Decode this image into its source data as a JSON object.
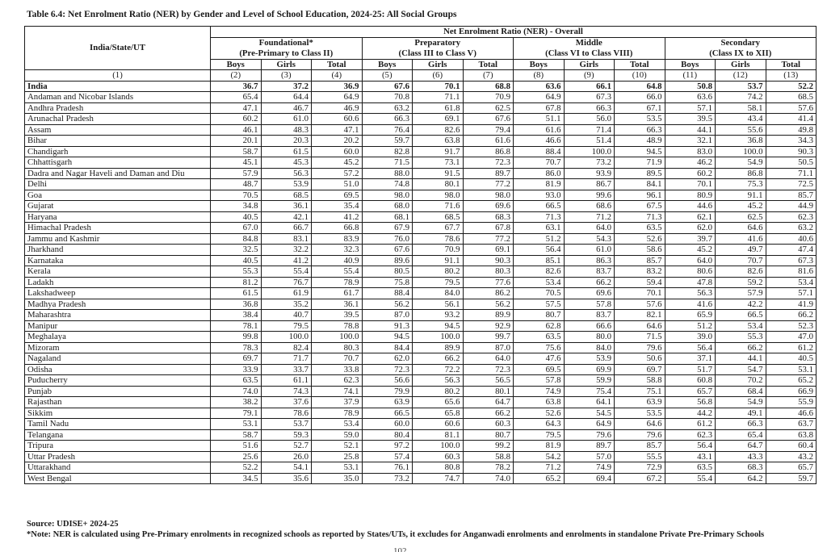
{
  "page": {
    "title": "Table 6.4: Net Enrolment Ratio (NER) by Gender and Level of School Education, 2024-25: All Social Groups",
    "page_number": "102"
  },
  "table": {
    "state_col_header": "India/State/UT",
    "overall_header": "Net Enrolment Ratio (NER) - Overall",
    "groups": [
      {
        "name": "Foundational*",
        "range": "(Pre-Primary to Class II)"
      },
      {
        "name": "Preparatory",
        "range": "(Class III to Class V)"
      },
      {
        "name": "Middle",
        "range": "(Class VI to Class VIII)"
      },
      {
        "name": "Secondary",
        "range": "(Class IX to XII)"
      }
    ],
    "sub_headers": [
      "Boys",
      "Girls",
      "Total"
    ],
    "col_numbers": [
      "(1)",
      "(2)",
      "(3)",
      "(4)",
      "(5)",
      "(6)",
      "(7)",
      "(8)",
      "(9)",
      "(10)",
      "(11)",
      "(12)",
      "(13)"
    ],
    "rows": [
      {
        "name": "India",
        "bold": true,
        "values": [
          "36.7",
          "37.2",
          "36.9",
          "67.6",
          "70.1",
          "68.8",
          "63.6",
          "66.1",
          "64.8",
          "50.8",
          "53.7",
          "52.2"
        ]
      },
      {
        "name": "Andaman and Nicobar Islands",
        "bold": false,
        "values": [
          "65.4",
          "64.4",
          "64.9",
          "70.8",
          "71.1",
          "70.9",
          "64.9",
          "67.3",
          "66.0",
          "63.6",
          "74.2",
          "68.5"
        ]
      },
      {
        "name": "Andhra Pradesh",
        "bold": false,
        "values": [
          "47.1",
          "46.7",
          "46.9",
          "63.2",
          "61.8",
          "62.5",
          "67.8",
          "66.3",
          "67.1",
          "57.1",
          "58.1",
          "57.6"
        ]
      },
      {
        "name": "Arunachal Pradesh",
        "bold": false,
        "values": [
          "60.2",
          "61.0",
          "60.6",
          "66.3",
          "69.1",
          "67.6",
          "51.1",
          "56.0",
          "53.5",
          "39.5",
          "43.4",
          "41.4"
        ]
      },
      {
        "name": "Assam",
        "bold": false,
        "values": [
          "46.1",
          "48.3",
          "47.1",
          "76.4",
          "82.6",
          "79.4",
          "61.6",
          "71.4",
          "66.3",
          "44.1",
          "55.6",
          "49.8"
        ]
      },
      {
        "name": "Bihar",
        "bold": false,
        "values": [
          "20.1",
          "20.3",
          "20.2",
          "59.7",
          "63.8",
          "61.6",
          "46.6",
          "51.4",
          "48.9",
          "32.1",
          "36.8",
          "34.3"
        ]
      },
      {
        "name": "Chandigarh",
        "bold": false,
        "values": [
          "58.7",
          "61.5",
          "60.0",
          "82.8",
          "91.7",
          "86.8",
          "88.4",
          "100.0",
          "94.5",
          "83.0",
          "100.0",
          "90.3"
        ]
      },
      {
        "name": "Chhattisgarh",
        "bold": false,
        "values": [
          "45.1",
          "45.3",
          "45.2",
          "71.5",
          "73.1",
          "72.3",
          "70.7",
          "73.2",
          "71.9",
          "46.2",
          "54.9",
          "50.5"
        ]
      },
      {
        "name": "Dadra and Nagar Haveli and Daman and Diu",
        "bold": false,
        "values": [
          "57.9",
          "56.3",
          "57.2",
          "88.0",
          "91.5",
          "89.7",
          "86.0",
          "93.9",
          "89.5",
          "60.2",
          "86.8",
          "71.1"
        ]
      },
      {
        "name": "Delhi",
        "bold": false,
        "values": [
          "48.7",
          "53.9",
          "51.0",
          "74.8",
          "80.1",
          "77.2",
          "81.9",
          "86.7",
          "84.1",
          "70.1",
          "75.3",
          "72.5"
        ]
      },
      {
        "name": "Goa",
        "bold": false,
        "values": [
          "70.5",
          "68.5",
          "69.5",
          "98.0",
          "98.0",
          "98.0",
          "93.0",
          "99.6",
          "96.1",
          "80.9",
          "91.1",
          "85.7"
        ]
      },
      {
        "name": "Gujarat",
        "bold": false,
        "values": [
          "34.8",
          "36.1",
          "35.4",
          "68.0",
          "71.6",
          "69.6",
          "66.5",
          "68.6",
          "67.5",
          "44.6",
          "45.2",
          "44.9"
        ]
      },
      {
        "name": "Haryana",
        "bold": false,
        "values": [
          "40.5",
          "42.1",
          "41.2",
          "68.1",
          "68.5",
          "68.3",
          "71.3",
          "71.2",
          "71.3",
          "62.1",
          "62.5",
          "62.3"
        ]
      },
      {
        "name": "Himachal Pradesh",
        "bold": false,
        "values": [
          "67.0",
          "66.7",
          "66.8",
          "67.9",
          "67.7",
          "67.8",
          "63.1",
          "64.0",
          "63.5",
          "62.0",
          "64.6",
          "63.2"
        ]
      },
      {
        "name": "Jammu and Kashmir",
        "bold": false,
        "values": [
          "84.8",
          "83.1",
          "83.9",
          "76.0",
          "78.6",
          "77.2",
          "51.2",
          "54.3",
          "52.6",
          "39.7",
          "41.6",
          "40.6"
        ]
      },
      {
        "name": "Jharkhand",
        "bold": false,
        "values": [
          "32.5",
          "32.2",
          "32.3",
          "67.6",
          "70.9",
          "69.1",
          "56.4",
          "61.0",
          "58.6",
          "45.2",
          "49.7",
          "47.4"
        ]
      },
      {
        "name": "Karnataka",
        "bold": false,
        "values": [
          "40.5",
          "41.2",
          "40.9",
          "89.6",
          "91.1",
          "90.3",
          "85.1",
          "86.3",
          "85.7",
          "64.0",
          "70.7",
          "67.3"
        ]
      },
      {
        "name": "Kerala",
        "bold": false,
        "values": [
          "55.3",
          "55.4",
          "55.4",
          "80.5",
          "80.2",
          "80.3",
          "82.6",
          "83.7",
          "83.2",
          "80.6",
          "82.6",
          "81.6"
        ]
      },
      {
        "name": "Ladakh",
        "bold": false,
        "values": [
          "81.2",
          "76.7",
          "78.9",
          "75.8",
          "79.5",
          "77.6",
          "53.4",
          "66.2",
          "59.4",
          "47.8",
          "59.2",
          "53.4"
        ]
      },
      {
        "name": "Lakshadweep",
        "bold": false,
        "values": [
          "61.5",
          "61.9",
          "61.7",
          "88.4",
          "84.0",
          "86.2",
          "70.5",
          "69.6",
          "70.1",
          "56.3",
          "57.9",
          "57.1"
        ]
      },
      {
        "name": "Madhya Pradesh",
        "bold": false,
        "values": [
          "36.8",
          "35.2",
          "36.1",
          "56.2",
          "56.1",
          "56.2",
          "57.5",
          "57.8",
          "57.6",
          "41.6",
          "42.2",
          "41.9"
        ]
      },
      {
        "name": "Maharashtra",
        "bold": false,
        "values": [
          "38.4",
          "40.7",
          "39.5",
          "87.0",
          "93.2",
          "89.9",
          "80.7",
          "83.7",
          "82.1",
          "65.9",
          "66.5",
          "66.2"
        ]
      },
      {
        "name": "Manipur",
        "bold": false,
        "values": [
          "78.1",
          "79.5",
          "78.8",
          "91.3",
          "94.5",
          "92.9",
          "62.8",
          "66.6",
          "64.6",
          "51.2",
          "53.4",
          "52.3"
        ]
      },
      {
        "name": "Meghalaya",
        "bold": false,
        "values": [
          "99.8",
          "100.0",
          "100.0",
          "94.5",
          "100.0",
          "99.7",
          "63.5",
          "80.0",
          "71.5",
          "39.0",
          "55.3",
          "47.0"
        ]
      },
      {
        "name": "Mizoram",
        "bold": false,
        "values": [
          "78.3",
          "82.4",
          "80.3",
          "84.4",
          "89.9",
          "87.0",
          "75.6",
          "84.0",
          "79.6",
          "56.4",
          "66.2",
          "61.2"
        ]
      },
      {
        "name": "Nagaland",
        "bold": false,
        "values": [
          "69.7",
          "71.7",
          "70.7",
          "62.0",
          "66.2",
          "64.0",
          "47.6",
          "53.9",
          "50.6",
          "37.1",
          "44.1",
          "40.5"
        ]
      },
      {
        "name": "Odisha",
        "bold": false,
        "values": [
          "33.9",
          "33.7",
          "33.8",
          "72.3",
          "72.2",
          "72.3",
          "69.5",
          "69.9",
          "69.7",
          "51.7",
          "54.7",
          "53.1"
        ]
      },
      {
        "name": "Puducherry",
        "bold": false,
        "values": [
          "63.5",
          "61.1",
          "62.3",
          "56.6",
          "56.3",
          "56.5",
          "57.8",
          "59.9",
          "58.8",
          "60.8",
          "70.2",
          "65.2"
        ]
      },
      {
        "name": "Punjab",
        "bold": false,
        "values": [
          "74.0",
          "74.3",
          "74.1",
          "79.9",
          "80.2",
          "80.1",
          "74.9",
          "75.4",
          "75.1",
          "65.7",
          "68.4",
          "66.9"
        ]
      },
      {
        "name": "Rajasthan",
        "bold": false,
        "values": [
          "38.2",
          "37.6",
          "37.9",
          "63.9",
          "65.6",
          "64.7",
          "63.8",
          "64.1",
          "63.9",
          "56.8",
          "54.9",
          "55.9"
        ]
      },
      {
        "name": "Sikkim",
        "bold": false,
        "values": [
          "79.1",
          "78.6",
          "78.9",
          "66.5",
          "65.8",
          "66.2",
          "52.6",
          "54.5",
          "53.5",
          "44.2",
          "49.1",
          "46.6"
        ]
      },
      {
        "name": "Tamil Nadu",
        "bold": false,
        "values": [
          "53.1",
          "53.7",
          "53.4",
          "60.0",
          "60.6",
          "60.3",
          "64.3",
          "64.9",
          "64.6",
          "61.2",
          "66.3",
          "63.7"
        ]
      },
      {
        "name": "Telangana",
        "bold": false,
        "values": [
          "58.7",
          "59.3",
          "59.0",
          "80.4",
          "81.1",
          "80.7",
          "79.5",
          "79.6",
          "79.6",
          "62.3",
          "65.4",
          "63.8"
        ]
      },
      {
        "name": "Tripura",
        "bold": false,
        "values": [
          "51.6",
          "52.7",
          "52.1",
          "97.2",
          "100.0",
          "99.2",
          "81.9",
          "89.7",
          "85.7",
          "56.4",
          "64.7",
          "60.4"
        ]
      },
      {
        "name": "Uttar Pradesh",
        "bold": false,
        "values": [
          "25.6",
          "26.0",
          "25.8",
          "57.4",
          "60.3",
          "58.8",
          "54.2",
          "57.0",
          "55.5",
          "43.1",
          "43.3",
          "43.2"
        ]
      },
      {
        "name": "Uttarakhand",
        "bold": false,
        "values": [
          "52.2",
          "54.1",
          "53.1",
          "76.1",
          "80.8",
          "78.2",
          "71.2",
          "74.9",
          "72.9",
          "63.5",
          "68.3",
          "65.7"
        ]
      },
      {
        "name": "West Bengal",
        "bold": false,
        "values": [
          "34.5",
          "35.6",
          "35.0",
          "73.2",
          "74.7",
          "74.0",
          "65.2",
          "69.4",
          "67.2",
          "55.4",
          "64.2",
          "59.7"
        ]
      }
    ]
  },
  "footer": {
    "source": "Source: UDISE+ 2024-25",
    "note": "*Note: NER is calculated using Pre-Primary enrolments in recognized schools as reported by States/UTs, it excludes for Anganwadi enrolments and enrolments in standalone Private Pre-Primary Schools"
  }
}
